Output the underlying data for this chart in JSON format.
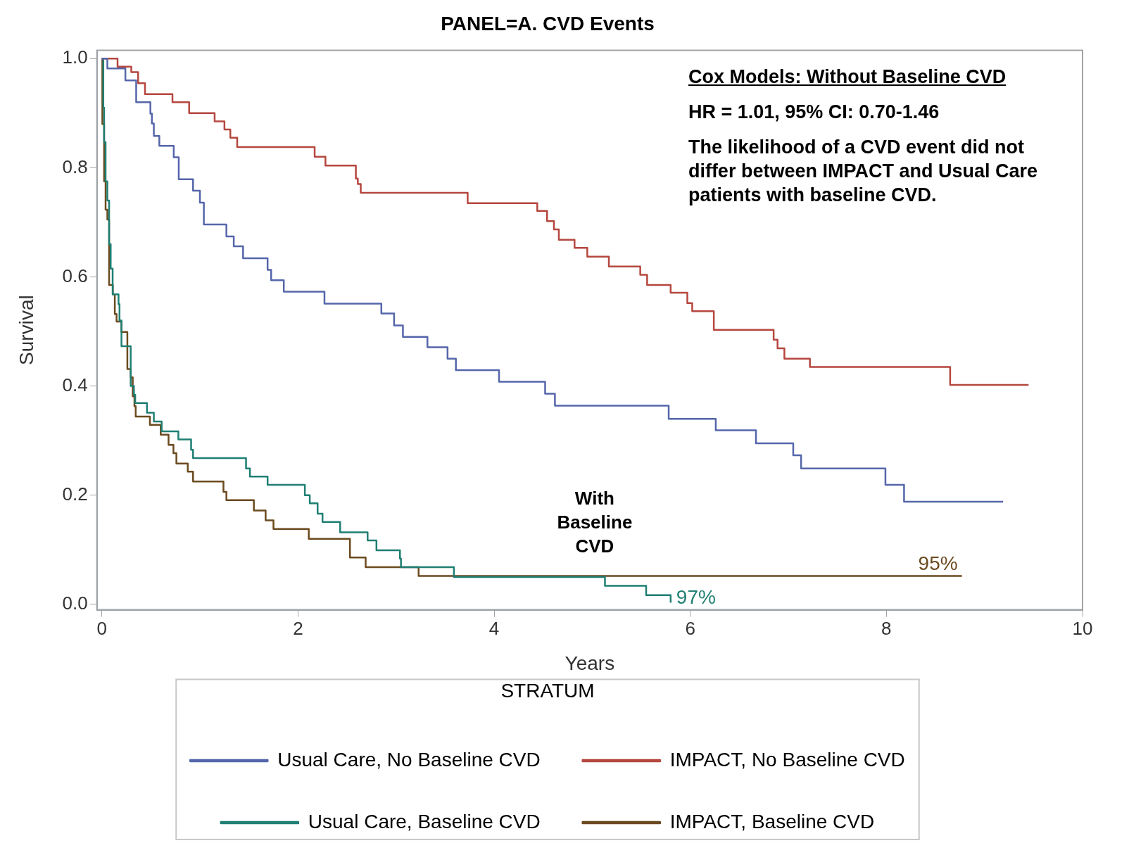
{
  "chart_data": {
    "type": "step",
    "title": "PANEL=A. CVD Events",
    "xlabel": "Years",
    "ylabel": "Survival",
    "legend_title": "STRATUM",
    "legend": "bottom",
    "grid": false,
    "marker": "none",
    "line_style": "solid",
    "xlim": [
      -0.05,
      10
    ],
    "xticks": [
      0,
      2,
      4,
      6,
      8,
      10
    ],
    "ylim": [
      -0.01,
      1.015
    ],
    "yticks": [
      {
        "value": 0,
        "label": "0.0"
      },
      {
        "value": 0.2,
        "label": "0.2"
      },
      {
        "value": 0.4,
        "label": "0.4"
      },
      {
        "value": 0.6,
        "label": "0.6"
      },
      {
        "value": 0.8,
        "label": "0.8"
      },
      {
        "value": 1,
        "label": "1.0"
      }
    ],
    "annotations": [
      "Cox  Models: Without Baseline CVD",
      "HR = 1.01, 95% CI: 0.70-1.46",
      "The likelihood of a CVD event did not differ between IMPACT and Usual Care patients with baseline CVD.",
      "With Baseline CVD",
      {
        "text": "95%",
        "x": 8.77,
        "y": 0.052
      },
      {
        "text": "97%",
        "x": 5.8,
        "y": 0.003
      }
    ],
    "series": [
      {
        "name": "Usual Care, No Baseline CVD",
        "color": "#5566aa",
        "x": [
          0,
          0.056,
          0.24,
          0.35,
          0.495,
          0.51,
          0.53,
          0.586,
          0.733,
          0.784,
          0.93,
          1.0,
          1.04,
          1.27,
          1.345,
          1.44,
          1.69,
          1.726,
          1.855,
          2.27,
          2.85,
          2.98,
          3.07,
          3.32,
          3.525,
          3.61,
          4.05,
          4.52,
          4.62,
          5.78,
          6.26,
          6.67,
          7.05,
          7.13,
          7.99,
          8.18,
          9.19
        ],
        "values": [
          1,
          0.982,
          0.96,
          0.92,
          0.899,
          0.881,
          0.858,
          0.84,
          0.819,
          0.779,
          0.758,
          0.736,
          0.696,
          0.674,
          0.656,
          0.634,
          0.613,
          0.594,
          0.573,
          0.551,
          0.533,
          0.511,
          0.49,
          0.471,
          0.45,
          0.429,
          0.408,
          0.386,
          0.364,
          0.34,
          0.319,
          0.295,
          0.273,
          0.249,
          0.219,
          0.188,
          0.188
        ]
      },
      {
        "name": "IMPACT, No Baseline CVD",
        "color": "#b5473f",
        "x": [
          0,
          0.16,
          0.3,
          0.37,
          0.44,
          0.72,
          0.89,
          1.15,
          1.25,
          1.31,
          1.38,
          2.17,
          2.28,
          2.59,
          2.61,
          2.64,
          3.73,
          4.44,
          4.54,
          4.61,
          4.66,
          4.82,
          4.95,
          5.17,
          5.49,
          5.56,
          5.8,
          5.97,
          6.02,
          6.24,
          6.85,
          6.89,
          6.96,
          7.22,
          8.65,
          9.45
        ],
        "values": [
          1,
          0.985,
          0.975,
          0.955,
          0.935,
          0.92,
          0.9,
          0.885,
          0.87,
          0.855,
          0.838,
          0.82,
          0.804,
          0.78,
          0.77,
          0.754,
          0.735,
          0.721,
          0.702,
          0.687,
          0.668,
          0.653,
          0.637,
          0.619,
          0.604,
          0.585,
          0.571,
          0.552,
          0.537,
          0.503,
          0.485,
          0.469,
          0.45,
          0.435,
          0.402,
          0.402
        ]
      },
      {
        "name": "Usual Care, Baseline CVD",
        "color": "#1f7f73",
        "x": [
          0,
          0.015,
          0.023,
          0.038,
          0.056,
          0.074,
          0.09,
          0.11,
          0.17,
          0.18,
          0.2,
          0.294,
          0.327,
          0.34,
          0.46,
          0.53,
          0.61,
          0.78,
          0.91,
          0.93,
          1.47,
          1.51,
          1.69,
          2.07,
          2.12,
          2.2,
          2.25,
          2.43,
          2.71,
          2.8,
          3.04,
          3.05,
          3.59,
          5.13,
          5.55,
          5.8
        ],
        "values": [
          1,
          0.91,
          0.847,
          0.775,
          0.74,
          0.66,
          0.615,
          0.568,
          0.55,
          0.52,
          0.473,
          0.4,
          0.384,
          0.369,
          0.351,
          0.335,
          0.317,
          0.302,
          0.283,
          0.268,
          0.249,
          0.234,
          0.219,
          0.2,
          0.185,
          0.166,
          0.151,
          0.132,
          0.117,
          0.099,
          0.084,
          0.068,
          0.05,
          0.034,
          0.017,
          0.003
        ]
      },
      {
        "name": "IMPACT, Baseline CVD",
        "color": "#6b4a1f",
        "x": [
          0,
          0.005,
          0.023,
          0.038,
          0.056,
          0.074,
          0.112,
          0.132,
          0.15,
          0.2,
          0.26,
          0.294,
          0.315,
          0.332,
          0.345,
          0.49,
          0.6,
          0.68,
          0.73,
          0.76,
          0.876,
          0.93,
          1.24,
          1.27,
          1.55,
          1.67,
          1.75,
          2.11,
          2.53,
          2.69,
          3.23,
          8.77
        ],
        "values": [
          1,
          0.88,
          0.775,
          0.723,
          0.705,
          0.585,
          0.568,
          0.532,
          0.518,
          0.499,
          0.431,
          0.416,
          0.381,
          0.363,
          0.344,
          0.329,
          0.311,
          0.292,
          0.277,
          0.258,
          0.243,
          0.225,
          0.206,
          0.191,
          0.172,
          0.154,
          0.138,
          0.12,
          0.086,
          0.068,
          0.052,
          0.052
        ]
      }
    ]
  }
}
